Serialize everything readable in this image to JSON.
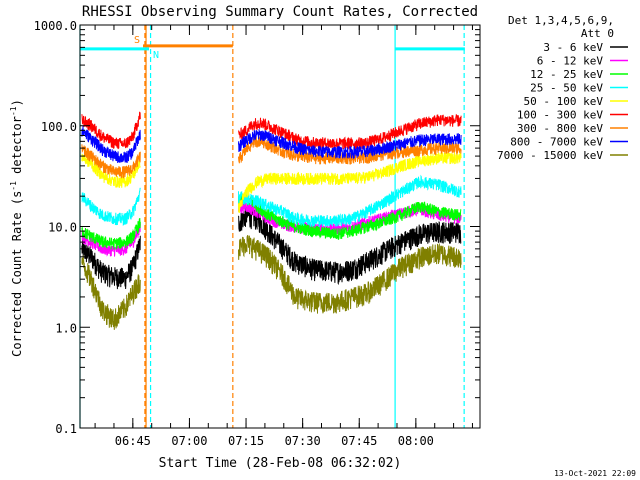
{
  "chart_data": {
    "type": "line",
    "title": "RHESSI Observing Summary Count Rates, Corrected",
    "xlabel": "Start Time (28-Feb-08 06:32:02)",
    "ylabel": "Corrected Count Rate (s⁻¹ detector⁻¹)",
    "ylabel_parts": {
      "main": "Corrected Count Rate (s",
      "sup1": "-1",
      "mid": " detector",
      "sup2": "-1",
      "end": ")"
    },
    "timestamp": "13-Oct-2021 22:09",
    "log_y": true,
    "ylim": [
      0.1,
      1000
    ],
    "xlim_minutes": [
      0,
      106
    ],
    "y_ticks": [
      {
        "v": 0.1,
        "label": "0.1"
      },
      {
        "v": 1,
        "label": "1.0"
      },
      {
        "v": 10,
        "label": "10.0"
      },
      {
        "v": 100,
        "label": "100.0"
      },
      {
        "v": 1000,
        "label": "1000.0"
      }
    ],
    "x_ticks": [
      {
        "min": 14,
        "label": "06:45"
      },
      {
        "min": 29,
        "label": "07:00"
      },
      {
        "min": 44,
        "label": "07:15"
      },
      {
        "min": 59,
        "label": "07:30"
      },
      {
        "min": 74,
        "label": "07:45"
      },
      {
        "min": 89,
        "label": "08:00"
      }
    ],
    "legend": {
      "header": [
        "Det 1,3,4,5,6,9,",
        "Att 0"
      ],
      "placement": "right"
    },
    "series": [
      {
        "name": "3 - 6 keV",
        "color": "#000000",
        "seg1": [
          [
            0.5,
            6
          ],
          [
            3,
            5
          ],
          [
            6,
            3.5
          ],
          [
            9,
            3.2
          ],
          [
            12,
            3.1
          ],
          [
            14,
            4
          ],
          [
            16,
            7
          ]
        ],
        "seg2": [
          [
            42,
            11
          ],
          [
            44,
            13
          ],
          [
            47,
            12
          ],
          [
            50,
            9
          ],
          [
            54,
            6
          ],
          [
            57,
            4.5
          ],
          [
            62,
            3.8
          ],
          [
            68,
            3.6
          ],
          [
            72,
            3.8
          ],
          [
            76,
            4.5
          ],
          [
            80,
            5.5
          ],
          [
            85,
            7
          ],
          [
            90,
            8.5
          ],
          [
            95,
            9
          ],
          [
            101,
            9
          ]
        ]
      },
      {
        "name": "6 - 12 keV",
        "color": "#ff00ff",
        "seg1": [
          [
            0.5,
            8
          ],
          [
            3,
            7
          ],
          [
            6,
            6
          ],
          [
            9,
            5.8
          ],
          [
            12,
            6
          ],
          [
            14,
            7
          ],
          [
            16,
            10
          ]
        ],
        "seg2": [
          [
            42,
            15
          ],
          [
            44,
            16
          ],
          [
            47,
            14
          ],
          [
            50,
            12
          ],
          [
            54,
            10.5
          ],
          [
            57,
            10
          ],
          [
            62,
            9.5
          ],
          [
            68,
            9.5
          ],
          [
            72,
            10
          ],
          [
            76,
            11
          ],
          [
            80,
            12
          ],
          [
            85,
            13.5
          ],
          [
            90,
            15
          ],
          [
            95,
            13
          ],
          [
            101,
            12
          ]
        ]
      },
      {
        "name": "12 - 25 keV",
        "color": "#00ff00",
        "seg1": [
          [
            0.5,
            9
          ],
          [
            3,
            8
          ],
          [
            6,
            7
          ],
          [
            9,
            6.8
          ],
          [
            12,
            7
          ],
          [
            14,
            8
          ],
          [
            16,
            11
          ]
        ],
        "seg2": [
          [
            42,
            18
          ],
          [
            44,
            19
          ],
          [
            47,
            16
          ],
          [
            50,
            13
          ],
          [
            54,
            11
          ],
          [
            57,
            10
          ],
          [
            62,
            9
          ],
          [
            68,
            8.5
          ],
          [
            72,
            9
          ],
          [
            76,
            10
          ],
          [
            80,
            11
          ],
          [
            85,
            13
          ],
          [
            90,
            16
          ],
          [
            95,
            14
          ],
          [
            101,
            13
          ]
        ]
      },
      {
        "name": "25 - 50 keV",
        "color": "#00ffff",
        "seg1": [
          [
            0.5,
            20
          ],
          [
            3,
            16
          ],
          [
            6,
            13
          ],
          [
            9,
            12
          ],
          [
            12,
            12
          ],
          [
            14,
            14
          ],
          [
            16,
            22
          ]
        ],
        "seg2": [
          [
            42,
            20
          ],
          [
            44,
            19
          ],
          [
            47,
            18
          ],
          [
            50,
            16
          ],
          [
            54,
            14
          ],
          [
            57,
            12
          ],
          [
            62,
            11.5
          ],
          [
            68,
            11.5
          ],
          [
            72,
            12
          ],
          [
            76,
            14
          ],
          [
            80,
            17
          ],
          [
            85,
            22
          ],
          [
            90,
            28
          ],
          [
            95,
            26
          ],
          [
            101,
            22
          ]
        ]
      },
      {
        "name": "50 - 100 keV",
        "color": "#ffff00",
        "seg1": [
          [
            0.5,
            50
          ],
          [
            3,
            42
          ],
          [
            6,
            32
          ],
          [
            9,
            28
          ],
          [
            12,
            28
          ],
          [
            14,
            32
          ],
          [
            16,
            45
          ]
        ],
        "seg2": [
          [
            42,
            15
          ],
          [
            44,
            22
          ],
          [
            47,
            28
          ],
          [
            50,
            30
          ],
          [
            54,
            30
          ],
          [
            57,
            30
          ],
          [
            62,
            30
          ],
          [
            68,
            30
          ],
          [
            72,
            30
          ],
          [
            76,
            31
          ],
          [
            80,
            34
          ],
          [
            85,
            40
          ],
          [
            90,
            45
          ],
          [
            95,
            48
          ],
          [
            101,
            48
          ]
        ]
      },
      {
        "name": "100 - 300 keV",
        "color": "#ff0000",
        "seg1": [
          [
            0.5,
            115
          ],
          [
            3,
            100
          ],
          [
            6,
            78
          ],
          [
            9,
            68
          ],
          [
            12,
            66
          ],
          [
            14,
            78
          ],
          [
            16,
            130
          ]
        ],
        "seg2": [
          [
            42,
            80
          ],
          [
            44,
            90
          ],
          [
            46,
            105
          ],
          [
            48,
            108
          ],
          [
            50,
            100
          ],
          [
            54,
            85
          ],
          [
            58,
            72
          ],
          [
            62,
            68
          ],
          [
            68,
            67
          ],
          [
            72,
            67
          ],
          [
            76,
            68
          ],
          [
            80,
            75
          ],
          [
            85,
            90
          ],
          [
            90,
            105
          ],
          [
            95,
            115
          ],
          [
            101,
            112
          ]
        ]
      },
      {
        "name": "300 - 800 keV",
        "color": "#ff8000",
        "seg1": [
          [
            0.5,
            58
          ],
          [
            3,
            50
          ],
          [
            6,
            40
          ],
          [
            9,
            35
          ],
          [
            12,
            35
          ],
          [
            14,
            38
          ],
          [
            16,
            50
          ]
        ],
        "seg2": [
          [
            42,
            45
          ],
          [
            44,
            58
          ],
          [
            46,
            70
          ],
          [
            48,
            72
          ],
          [
            50,
            65
          ],
          [
            54,
            55
          ],
          [
            58,
            50
          ],
          [
            62,
            48
          ],
          [
            68,
            48
          ],
          [
            72,
            48
          ],
          [
            76,
            49
          ],
          [
            80,
            52
          ],
          [
            85,
            55
          ],
          [
            90,
            58
          ],
          [
            95,
            60
          ],
          [
            101,
            60
          ]
        ]
      },
      {
        "name": "800 - 7000 keV",
        "color": "#0000ff",
        "seg1": [
          [
            0.5,
            90
          ],
          [
            3,
            75
          ],
          [
            6,
            58
          ],
          [
            9,
            50
          ],
          [
            12,
            48
          ],
          [
            14,
            55
          ],
          [
            16,
            85
          ]
        ],
        "seg2": [
          [
            42,
            62
          ],
          [
            44,
            72
          ],
          [
            46,
            80
          ],
          [
            48,
            82
          ],
          [
            50,
            78
          ],
          [
            54,
            68
          ],
          [
            58,
            60
          ],
          [
            62,
            56
          ],
          [
            68,
            55
          ],
          [
            72,
            55
          ],
          [
            76,
            56
          ],
          [
            80,
            60
          ],
          [
            85,
            66
          ],
          [
            90,
            72
          ],
          [
            95,
            74
          ],
          [
            101,
            74
          ]
        ]
      },
      {
        "name": "7000 - 15000 keV",
        "color": "#808000",
        "seg1": [
          [
            0.5,
            4.5
          ],
          [
            3,
            3
          ],
          [
            6,
            1.5
          ],
          [
            9,
            1.2
          ],
          [
            12,
            1.6
          ],
          [
            14,
            2.2
          ],
          [
            16,
            3
          ]
        ],
        "seg2": [
          [
            42,
            6
          ],
          [
            44,
            7
          ],
          [
            47,
            6
          ],
          [
            50,
            5
          ],
          [
            54,
            3.2
          ],
          [
            57,
            2
          ],
          [
            62,
            1.8
          ],
          [
            68,
            1.8
          ],
          [
            72,
            2
          ],
          [
            76,
            2.2
          ],
          [
            80,
            2.8
          ],
          [
            85,
            4
          ],
          [
            90,
            5
          ],
          [
            95,
            5.5
          ],
          [
            101,
            5
          ]
        ]
      }
    ],
    "vertical_lines": [
      {
        "min": 0,
        "color": "#00ffff",
        "style": "solid"
      },
      {
        "min": 17.5,
        "color": "#ff8000",
        "style": "solid"
      },
      {
        "min": 18.7,
        "color": "#00ffff",
        "style": "dashed"
      },
      {
        "min": 17.2,
        "color": "#ff8000",
        "style": "dashed"
      },
      {
        "min": 40.5,
        "color": "#ff8000",
        "style": "dashed"
      },
      {
        "min": 83.5,
        "color": "#00ffff",
        "style": "solid"
      },
      {
        "min": 101.8,
        "color": "#00ffff",
        "style": "dashed"
      }
    ],
    "flag_bars": [
      {
        "label": "S",
        "color": "#ff8000",
        "from_min": 16.7,
        "to_min": 40.5,
        "level": 620,
        "label_side": "left"
      },
      {
        "label": "N",
        "color": "#00ffff",
        "from_min": 0,
        "to_min": 18.3,
        "level": 580,
        "label_side": "right"
      },
      {
        "label": "",
        "color": "#00ffff",
        "from_min": 83.5,
        "to_min": 102,
        "level": 580,
        "label_side": "none"
      }
    ]
  }
}
